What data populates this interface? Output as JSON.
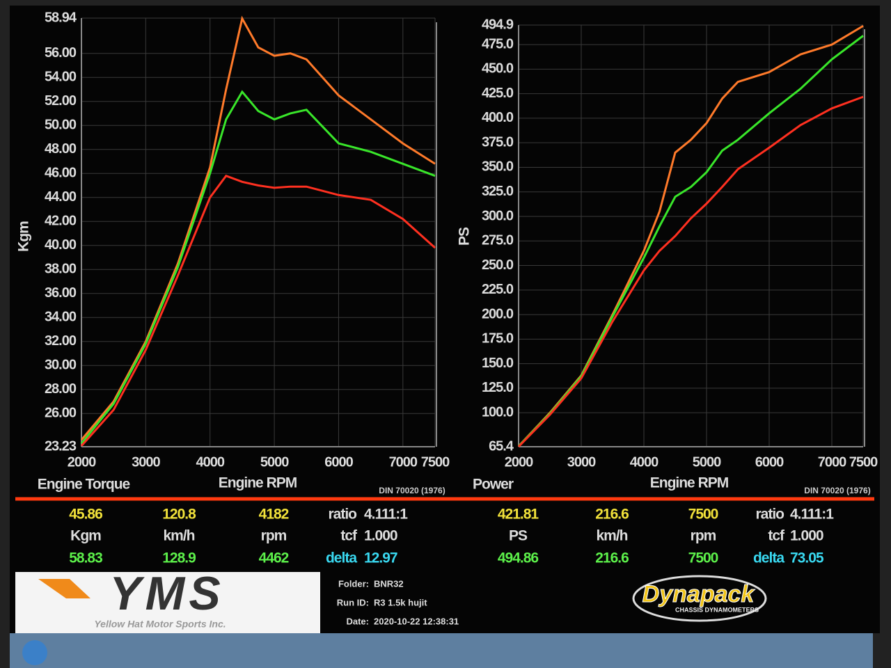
{
  "chart_data": [
    {
      "type": "line",
      "title": "Engine Torque",
      "x_label": "Engine RPM",
      "y_label": "Kgm",
      "note": "DIN 70020 (1976)",
      "x": [
        2000,
        2500,
        3000,
        3500,
        4000,
        4250,
        4500,
        4750,
        5000,
        5250,
        5500,
        6000,
        6500,
        7000,
        7500
      ],
      "series": [
        {
          "color": "#ff7a2a",
          "values": [
            23.8,
            27,
            32,
            38.5,
            46.5,
            53,
            58.9,
            56.5,
            55.8,
            56,
            55.5,
            52.5,
            50.5,
            48.5,
            46.8
          ]
        },
        {
          "color": "#39e62a",
          "values": [
            23.5,
            26.8,
            31.8,
            38.2,
            46,
            50.5,
            52.8,
            51.2,
            50.5,
            51,
            51.3,
            48.5,
            47.8,
            46.8,
            45.8
          ]
        },
        {
          "color": "#ff3020",
          "values": [
            23.3,
            26.3,
            31.3,
            37.5,
            44,
            45.8,
            45.3,
            45,
            44.8,
            44.9,
            44.9,
            44.2,
            43.8,
            42.2,
            39.8
          ]
        }
      ],
      "xlim": [
        2000,
        7500
      ],
      "xticks": [
        2000,
        3000,
        4000,
        5000,
        6000,
        7000,
        7500
      ],
      "ylim": [
        23.23,
        58.94
      ],
      "yticks": [
        23.23,
        {
          "value": 26,
          "label": "26.00"
        },
        {
          "value": 28,
          "label": "28.00"
        },
        {
          "value": 30,
          "label": "30.00"
        },
        {
          "value": 32,
          "label": "32.00"
        },
        {
          "value": 34,
          "label": "34.00"
        },
        {
          "value": 36,
          "label": "36.00"
        },
        {
          "value": 38,
          "label": "38.00"
        },
        {
          "value": 40,
          "label": "40.00"
        },
        {
          "value": 42,
          "label": "42.00"
        },
        {
          "value": 44,
          "label": "44.00"
        },
        {
          "value": 46,
          "label": "46.00"
        },
        {
          "value": 48,
          "label": "48.00"
        },
        {
          "value": 50,
          "label": "50.00"
        },
        {
          "value": 52,
          "label": "52.00"
        },
        {
          "value": 54,
          "label": "54.00"
        },
        {
          "value": 56,
          "label": "56.00"
        },
        58.94
      ],
      "grid": true
    },
    {
      "type": "line",
      "title": "Power",
      "x_label": "Engine RPM",
      "y_label": "PS",
      "note": "DIN 70020 (1976)",
      "x": [
        2000,
        2500,
        3000,
        3500,
        4000,
        4250,
        4500,
        4750,
        5000,
        5250,
        5500,
        6000,
        6500,
        7000,
        7500
      ],
      "series": [
        {
          "color": "#ff7a2a",
          "values": [
            66,
            100,
            138,
            200,
            265,
            305,
            365,
            378,
            395,
            420,
            437,
            447,
            465,
            475,
            494
          ]
        },
        {
          "color": "#39e62a",
          "values": [
            66,
            99,
            137,
            198,
            258,
            290,
            320,
            330,
            345,
            367,
            378,
            405,
            430,
            460,
            484
          ]
        },
        {
          "color": "#ff3020",
          "values": [
            65.5,
            98,
            135,
            193,
            245,
            265,
            280,
            298,
            313,
            330,
            348,
            370,
            393,
            410,
            421.8
          ]
        }
      ],
      "xlim": [
        2000,
        7500
      ],
      "xticks": [
        2000,
        3000,
        4000,
        5000,
        6000,
        7000,
        7500
      ],
      "ylim": [
        65.4,
        494.9
      ],
      "yticks": [
        65.4,
        {
          "value": 100,
          "label": "100.0"
        },
        {
          "value": 125,
          "label": "125.0"
        },
        {
          "value": 150,
          "label": "150.0"
        },
        {
          "value": 175,
          "label": "175.0"
        },
        {
          "value": 200,
          "label": "200.0"
        },
        {
          "value": 225,
          "label": "225.0"
        },
        {
          "value": 250,
          "label": "250.0"
        },
        {
          "value": 275,
          "label": "275.0"
        },
        {
          "value": 300,
          "label": "300.0"
        },
        {
          "value": 325,
          "label": "325.0"
        },
        {
          "value": 350,
          "label": "350.0"
        },
        {
          "value": 375,
          "label": "375.0"
        },
        {
          "value": 400,
          "label": "400.0"
        },
        {
          "value": 425,
          "label": "425.0"
        },
        {
          "value": 450,
          "label": "450.0"
        },
        {
          "value": 475,
          "label": "475.0"
        },
        494.9
      ],
      "grid": true
    }
  ],
  "readouts": [
    {
      "current": [
        "45.86",
        "120.8",
        "4182"
      ],
      "units": [
        "Kgm",
        "km/h",
        "rpm"
      ],
      "peak": [
        "58.83",
        "128.9",
        "4462"
      ],
      "ratio_label": "ratio",
      "ratio": "4.111:1",
      "tcf_label": "tcf",
      "tcf": "1.000",
      "delta_label": "delta",
      "delta": "12.97"
    },
    {
      "current": [
        "421.81",
        "216.6",
        "7500"
      ],
      "units": [
        "PS",
        "km/h",
        "rpm"
      ],
      "peak": [
        "494.86",
        "216.6",
        "7500"
      ],
      "ratio_label": "ratio",
      "ratio": "4.111:1",
      "tcf_label": "tcf",
      "tcf": "1.000",
      "delta_label": "delta",
      "delta": "73.05"
    }
  ],
  "footer": {
    "logo": "YMS",
    "logo_subtitle": "Yellow Hat Motor Sports Inc.",
    "info": [
      [
        "Folder:",
        "BNR32"
      ],
      [
        "Run ID:",
        "R3 1.5k hujit"
      ],
      [
        "Date:",
        "2020-10-22 12:38:31"
      ]
    ],
    "brand": "Dynapack",
    "brand_subtitle": "CHASSIS DYNAMOMETERS"
  }
}
